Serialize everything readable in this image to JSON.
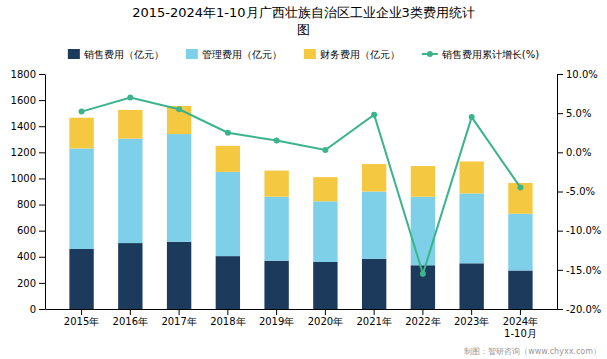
{
  "chart_data": {
    "type": "bar",
    "title": "2015-2024年1-10月广西壮族自治区工业企业3类费用统计",
    "subtitle": "图",
    "categories": [
      "2015年",
      "2016年",
      "2017年",
      "2018年",
      "2019年",
      "2020年",
      "2021年",
      "2022年",
      "2023年",
      "2024年\n1-10月"
    ],
    "stacked": true,
    "series": [
      {
        "name": "销售费用（亿元）",
        "color": "#1b3a5c",
        "values": [
          460,
          505,
          515,
          405,
          370,
          360,
          385,
          335,
          350,
          295
        ]
      },
      {
        "name": "管理费用（亿元）",
        "color": "#7ecfe8",
        "values": [
          770,
          800,
          825,
          645,
          490,
          465,
          515,
          525,
          535,
          435
        ]
      },
      {
        "name": "财务费用（亿元）",
        "color": "#f5c842",
        "values": [
          235,
          220,
          215,
          200,
          200,
          185,
          210,
          235,
          245,
          235
        ]
      },
      {
        "name": "销售费用累计增长(%)",
        "type": "line",
        "axis": "y2",
        "color": "#3cb48a",
        "marker": "circle",
        "values": [
          5.2,
          7.0,
          5.5,
          2.5,
          1.5,
          0.3,
          4.8,
          -15.5,
          4.5,
          -4.5
        ]
      }
    ],
    "ylim": [
      0,
      1800
    ],
    "yticks": [
      0,
      200,
      400,
      600,
      800,
      1000,
      1200,
      1400,
      1600,
      1800
    ],
    "y2lim": [
      -20,
      10
    ],
    "y2ticks": [
      {
        "value": -20,
        "label": "-20.0%"
      },
      {
        "value": -15,
        "label": "-15.0%"
      },
      {
        "value": -10,
        "label": "-10.0%"
      },
      {
        "value": -5,
        "label": "-5.0%"
      },
      {
        "value": 0,
        "label": "0.0%"
      },
      {
        "value": 5,
        "label": "5.0%"
      },
      {
        "value": 10,
        "label": "10.0%"
      }
    ],
    "grid": false,
    "annotations": [
      "制图：智研咨询（www.chyxx.com）"
    ]
  }
}
